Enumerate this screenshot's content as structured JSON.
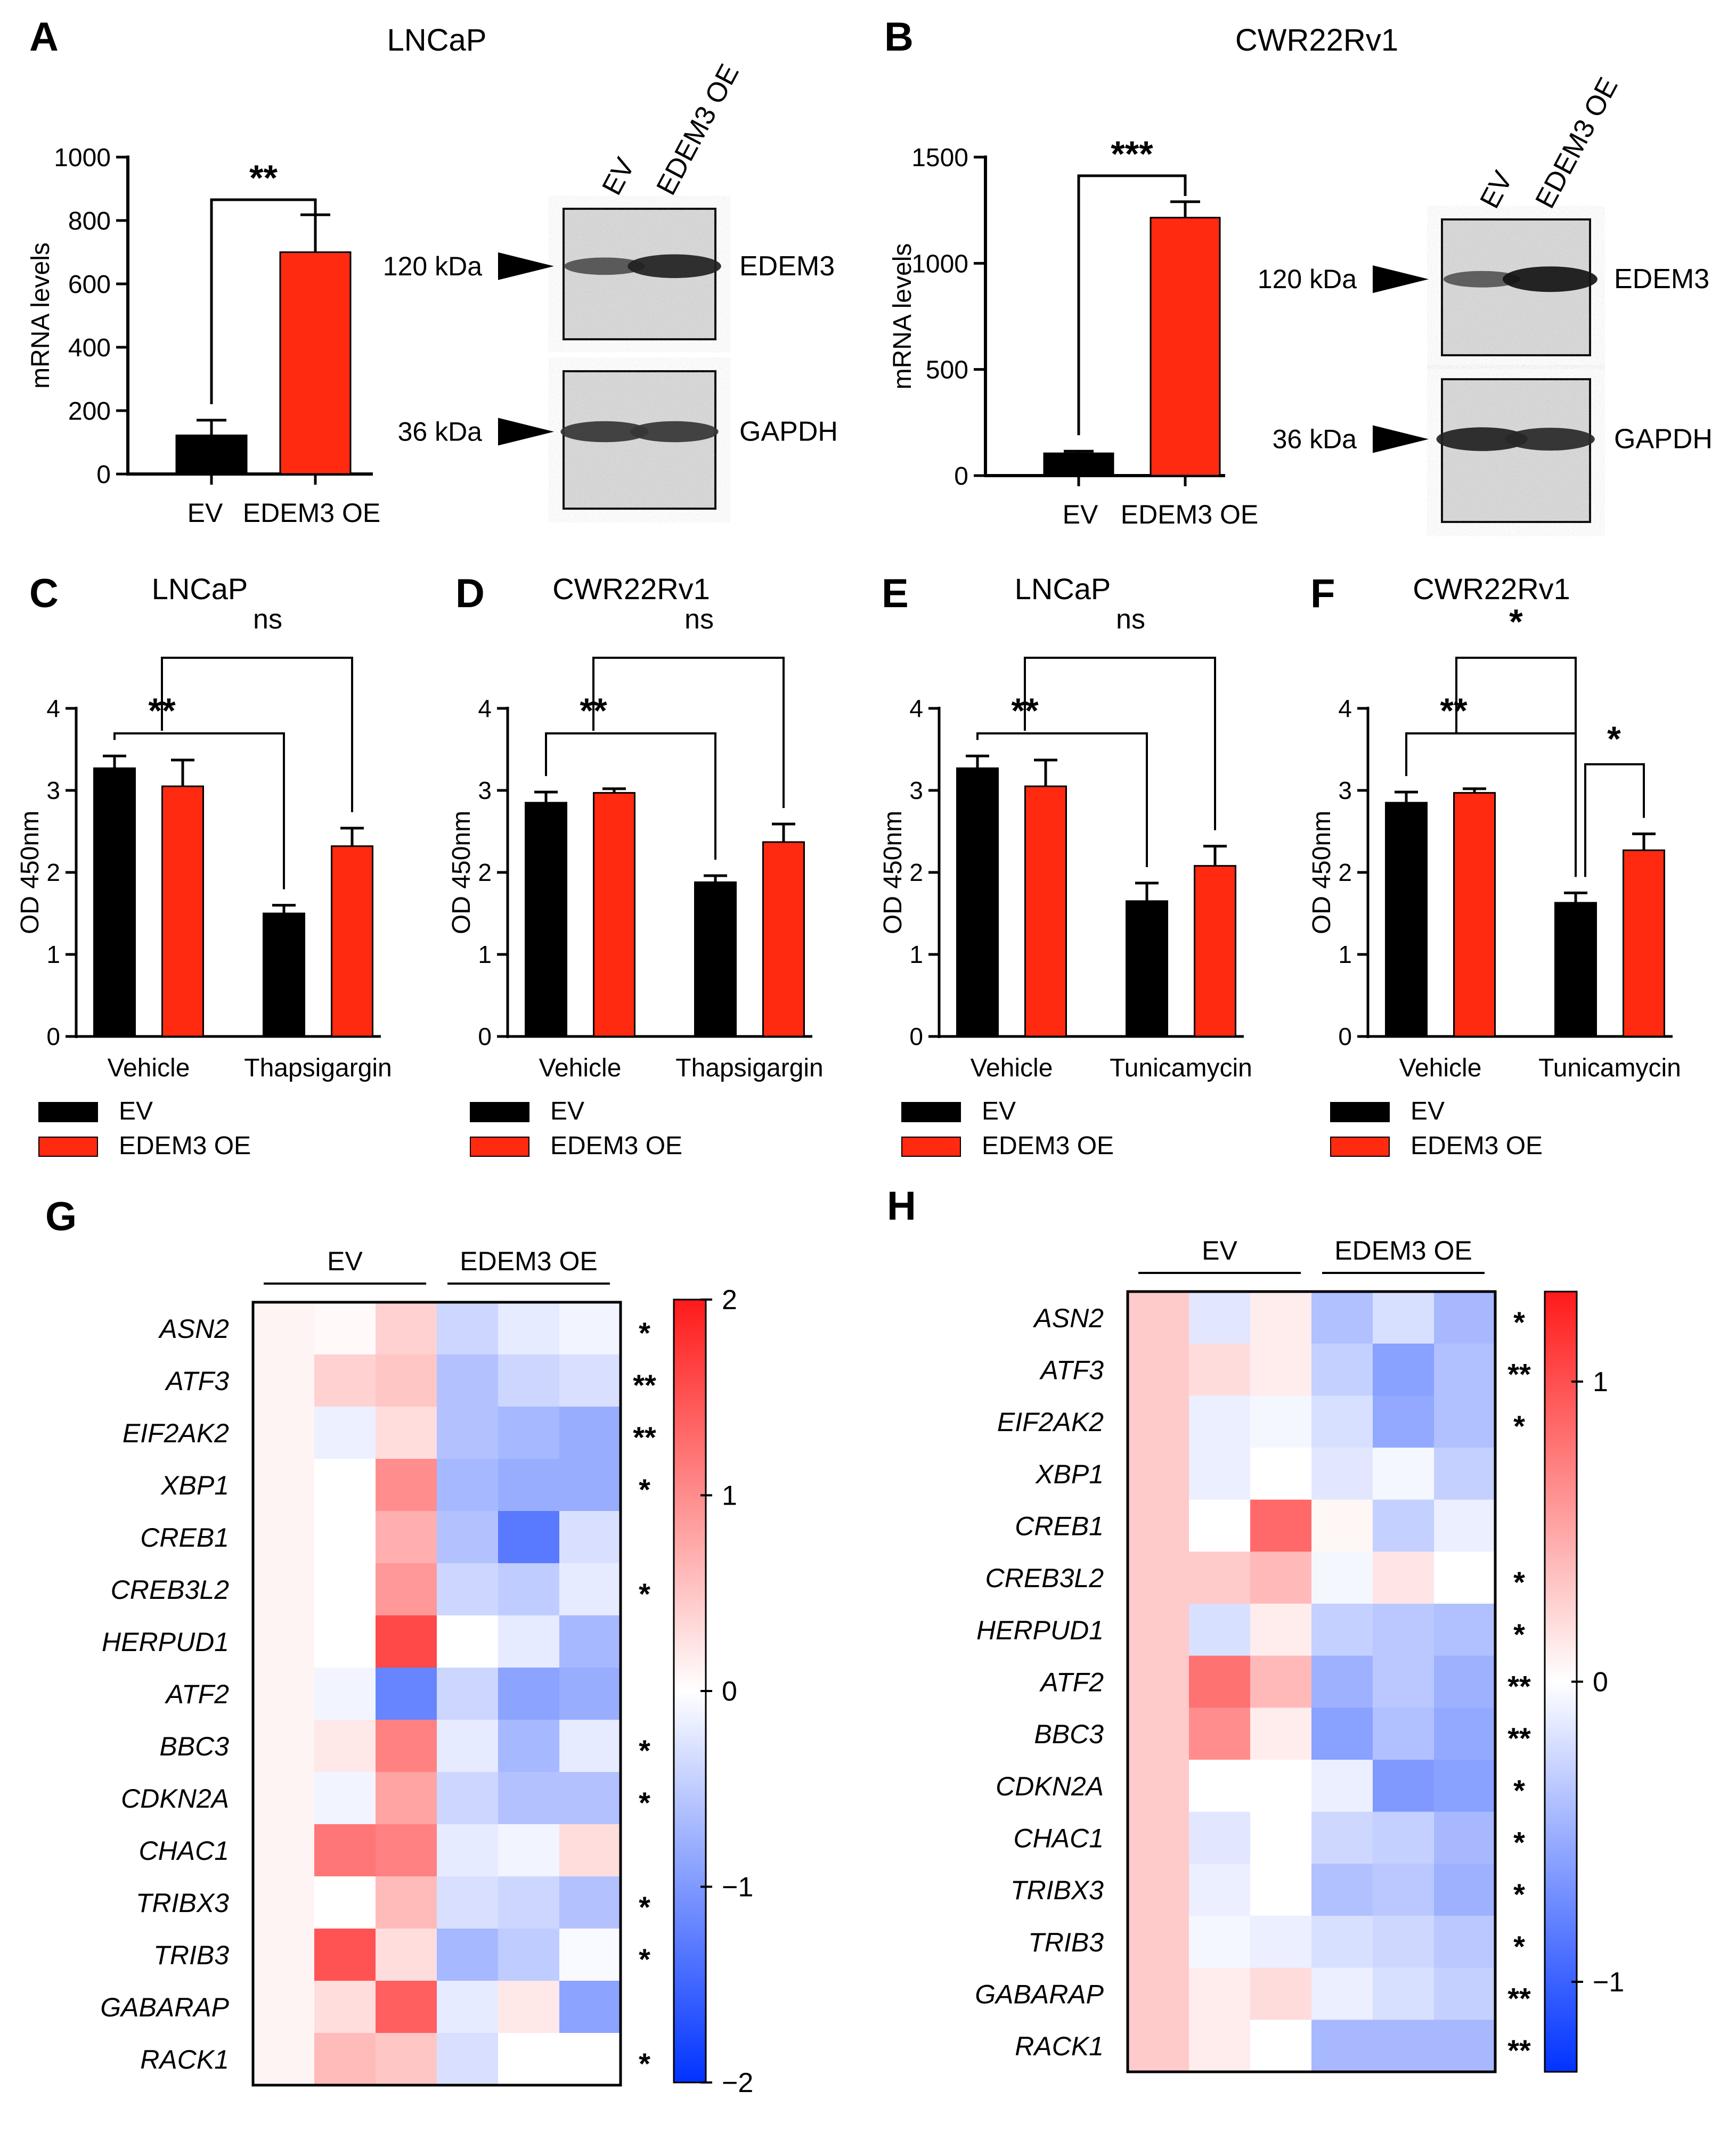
{
  "figure": {
    "panel_letters": [
      "A",
      "B",
      "C",
      "D",
      "E",
      "F",
      "G",
      "H"
    ],
    "bar_color_ev": "#000000",
    "bar_color_oe": "#ff2a10",
    "heatmap_colors": {
      "low": "#0033ff",
      "mid": "#ffffff",
      "high": "#ff1a1a"
    }
  },
  "chart_data": [
    {
      "panel": "A",
      "type": "bar",
      "title": "LNCaP",
      "categories": [
        "EV",
        "EDEM3 OE"
      ],
      "values": [
        122,
        700
      ],
      "errors": [
        48,
        118
      ],
      "ylabel": "mRNA levels",
      "ylim": [
        0,
        1000
      ],
      "yticks": [
        "0",
        "200",
        "400",
        "600",
        "800",
        "1000"
      ],
      "significance": [
        {
          "label": "**",
          "from": 0,
          "to": 1
        }
      ]
    },
    {
      "panel": "B",
      "type": "bar",
      "title": "CWR22Rv1",
      "categories": [
        "EV",
        "EDEM3 OE"
      ],
      "values": [
        105,
        1215
      ],
      "errors": [
        10,
        75
      ],
      "ylabel": "mRNA levels",
      "ylim": [
        0,
        1500
      ],
      "yticks": [
        "0",
        "500",
        "1000",
        "1500"
      ],
      "significance": [
        {
          "label": "***",
          "from": 0,
          "to": 1
        }
      ]
    },
    {
      "panel": "C",
      "type": "bar",
      "title": "LNCaP",
      "categories": [
        "Vehicle",
        "Thapsigargin"
      ],
      "series": [
        {
          "name": "EV",
          "values": [
            3.27,
            1.5
          ],
          "errors": [
            0.15,
            0.1
          ]
        },
        {
          "name": "EDEM3 OE",
          "values": [
            3.05,
            2.32
          ],
          "errors": [
            0.32,
            0.22
          ]
        }
      ],
      "ylabel": "OD 450nm",
      "ylim": [
        0,
        4
      ],
      "yticks": [
        "0",
        "1",
        "2",
        "3",
        "4"
      ],
      "legend": [
        "EV",
        "EDEM3 OE"
      ],
      "significance": [
        {
          "label": "**",
          "from": [
            0,
            0
          ],
          "to": [
            1,
            0
          ],
          "level": 1
        },
        {
          "label": "ns",
          "from": [
            0,
            1
          ],
          "to": [
            1,
            1
          ],
          "level": 2
        }
      ]
    },
    {
      "panel": "D",
      "type": "bar",
      "title": "CWR22Rv1",
      "categories": [
        "Vehicle",
        "Thapsigargin"
      ],
      "series": [
        {
          "name": "EV",
          "values": [
            2.85,
            1.88
          ],
          "errors": [
            0.13,
            0.08
          ]
        },
        {
          "name": "EDEM3 OE",
          "values": [
            2.97,
            2.37
          ],
          "errors": [
            0.05,
            0.22
          ]
        }
      ],
      "ylabel": "OD 450nm",
      "ylim": [
        0,
        4
      ],
      "yticks": [
        "0",
        "1",
        "2",
        "3",
        "4"
      ],
      "legend": [
        "EV",
        "EDEM3 OE"
      ],
      "significance": [
        {
          "label": "**",
          "from": [
            0,
            0
          ],
          "to": [
            1,
            0
          ],
          "level": 1
        },
        {
          "label": "ns",
          "from": [
            0,
            1
          ],
          "to": [
            1,
            1
          ],
          "level": 2
        }
      ]
    },
    {
      "panel": "E",
      "type": "bar",
      "title": "LNCaP",
      "categories": [
        "Vehicle",
        "Tunicamycin"
      ],
      "series": [
        {
          "name": "EV",
          "values": [
            3.27,
            1.65
          ],
          "errors": [
            0.15,
            0.22
          ]
        },
        {
          "name": "EDEM3 OE",
          "values": [
            3.05,
            2.08
          ],
          "errors": [
            0.32,
            0.24
          ]
        }
      ],
      "ylabel": "OD 450nm",
      "ylim": [
        0,
        4
      ],
      "yticks": [
        "0",
        "1",
        "2",
        "3",
        "4"
      ],
      "legend": [
        "EV",
        "EDEM3 OE"
      ],
      "significance": [
        {
          "label": "**",
          "from": [
            0,
            0
          ],
          "to": [
            1,
            0
          ],
          "level": 1
        },
        {
          "label": "ns",
          "from": [
            0,
            1
          ],
          "to": [
            1,
            1
          ],
          "level": 2
        }
      ]
    },
    {
      "panel": "F",
      "type": "bar",
      "title": "CWR22Rv1",
      "categories": [
        "Vehicle",
        "Tunicamycin"
      ],
      "series": [
        {
          "name": "EV",
          "values": [
            2.85,
            1.63
          ],
          "errors": [
            0.13,
            0.12
          ]
        },
        {
          "name": "EDEM3 OE",
          "values": [
            2.97,
            2.27
          ],
          "errors": [
            0.05,
            0.2
          ]
        }
      ],
      "ylabel": "OD 450nm",
      "ylim": [
        0,
        4
      ],
      "yticks": [
        "0",
        "1",
        "2",
        "3",
        "4"
      ],
      "legend": [
        "EV",
        "EDEM3 OE"
      ],
      "significance": [
        {
          "label": "**",
          "from": [
            0,
            0
          ],
          "to": [
            1,
            0
          ],
          "level": 1
        },
        {
          "label": "*",
          "from": [
            0,
            1
          ],
          "to": [
            1,
            0
          ],
          "level": 2
        },
        {
          "label": "*",
          "from": [
            1,
            0
          ],
          "to": [
            1,
            1
          ],
          "level": 1
        }
      ]
    },
    {
      "panel": "G",
      "type": "heatmap",
      "column_groups": [
        "EV",
        "EDEM3 OE"
      ],
      "rows": [
        "ASN2",
        "ATF3",
        "EIF2AK2",
        "XBP1",
        "CREB1",
        "CREB3L2",
        "HERPUD1",
        "ATF2",
        "BBC3",
        "CDKN2A",
        "CHAC1",
        "TRIBX3",
        "TRIB3",
        "GABARAP",
        "RACK1"
      ],
      "values": [
        [
          0.1,
          0.05,
          0.4,
          -0.4,
          -0.2,
          -0.1
        ],
        [
          0.1,
          0.4,
          0.5,
          -0.6,
          -0.4,
          -0.3
        ],
        [
          0.1,
          -0.15,
          0.3,
          -0.6,
          -0.7,
          -0.8
        ],
        [
          0.1,
          0.0,
          1.0,
          -0.7,
          -0.8,
          -0.8
        ],
        [
          0.1,
          0.0,
          0.7,
          -0.6,
          -1.3,
          -0.3
        ],
        [
          0.1,
          0.0,
          0.9,
          -0.4,
          -0.5,
          -0.2
        ],
        [
          0.1,
          0.0,
          1.6,
          0.0,
          -0.2,
          -0.7
        ],
        [
          0.1,
          -0.1,
          -1.2,
          -0.4,
          -0.9,
          -0.8
        ],
        [
          0.1,
          0.2,
          1.1,
          -0.2,
          -0.7,
          -0.2
        ],
        [
          0.1,
          -0.1,
          0.8,
          -0.4,
          -0.6,
          -0.6
        ],
        [
          0.1,
          1.2,
          1.1,
          -0.2,
          -0.1,
          0.3
        ],
        [
          0.1,
          0.0,
          0.6,
          -0.3,
          -0.4,
          -0.6
        ],
        [
          0.1,
          1.5,
          0.3,
          -0.7,
          -0.5,
          -0.05
        ],
        [
          0.1,
          0.3,
          1.4,
          -0.2,
          0.2,
          -0.9
        ],
        [
          0.1,
          0.6,
          0.5,
          -0.3,
          0.0,
          0.0
        ]
      ],
      "significance": [
        "*",
        "**",
        "**",
        "*",
        "",
        "*",
        "",
        "",
        "*",
        "*",
        "",
        "*",
        "*",
        "",
        "*"
      ],
      "colorbar": {
        "min": -2,
        "max": 2,
        "ticks": [
          "2",
          "1",
          "0",
          "−1",
          "−2"
        ]
      }
    },
    {
      "panel": "H",
      "type": "heatmap",
      "column_groups": [
        "EV",
        "EDEM3 OE"
      ],
      "rows": [
        "ASN2",
        "ATF3",
        "EIF2AK2",
        "XBP1",
        "CREB1",
        "CREB3L2",
        "HERPUD1",
        "ATF2",
        "BBC3",
        "CDKN2A",
        "CHAC1",
        "TRIBX3",
        "TRIB3",
        "GABARAP",
        "RACK1"
      ],
      "values": [
        [
          0.3,
          -0.15,
          0.1,
          -0.4,
          -0.2,
          -0.45
        ],
        [
          0.3,
          0.2,
          0.1,
          -0.3,
          -0.6,
          -0.4
        ],
        [
          0.3,
          -0.1,
          -0.05,
          -0.2,
          -0.55,
          -0.4
        ],
        [
          0.3,
          -0.1,
          0.0,
          -0.15,
          -0.05,
          -0.3
        ],
        [
          0.3,
          0.0,
          0.85,
          0.05,
          -0.3,
          -0.1
        ],
        [
          0.3,
          0.3,
          0.4,
          -0.05,
          0.15,
          0.0
        ],
        [
          0.3,
          -0.2,
          0.1,
          -0.3,
          -0.35,
          -0.4
        ],
        [
          0.3,
          0.8,
          0.4,
          -0.5,
          -0.35,
          -0.5
        ],
        [
          0.3,
          0.65,
          0.1,
          -0.6,
          -0.4,
          -0.55
        ],
        [
          0.3,
          0.0,
          0.0,
          -0.1,
          -0.65,
          -0.6
        ],
        [
          0.3,
          -0.15,
          0.0,
          -0.25,
          -0.3,
          -0.45
        ],
        [
          0.3,
          -0.1,
          0.0,
          -0.4,
          -0.35,
          -0.5
        ],
        [
          0.3,
          -0.05,
          -0.1,
          -0.2,
          -0.25,
          -0.35
        ],
        [
          0.3,
          0.1,
          0.2,
          -0.1,
          -0.2,
          -0.3
        ],
        [
          0.3,
          0.1,
          0.0,
          -0.45,
          -0.45,
          -0.45
        ]
      ],
      "significance": [
        "*",
        "**",
        "*",
        "",
        "",
        "*",
        "*",
        "**",
        "**",
        "*",
        "*",
        "*",
        "*",
        "**",
        "**"
      ],
      "colorbar": {
        "min": -1.3,
        "max": 1.3,
        "ticks": [
          "1",
          "0",
          "−1"
        ],
        "tick_values": [
          1,
          0,
          -1
        ]
      }
    }
  ],
  "western_blots": [
    {
      "panel": "A",
      "lanes": [
        "EV",
        "EDEM3 OE"
      ],
      "bands": [
        {
          "marker": "120 kDa",
          "protein": "EDEM3",
          "intensity": [
            0.55,
            0.9
          ]
        },
        {
          "marker": "36 kDa",
          "protein": "GAPDH",
          "intensity": [
            0.75,
            0.75
          ]
        }
      ]
    },
    {
      "panel": "B",
      "lanes": [
        "EV",
        "EDEM3 OE"
      ],
      "bands": [
        {
          "marker": "120 kDa",
          "protein": "EDEM3",
          "intensity": [
            0.5,
            1.0
          ]
        },
        {
          "marker": "36 kDa",
          "protein": "GAPDH",
          "intensity": [
            0.9,
            0.85
          ]
        }
      ]
    }
  ]
}
